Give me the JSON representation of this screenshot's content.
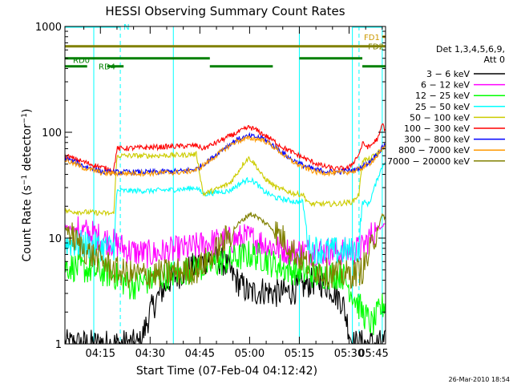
{
  "chart_data": {
    "type": "line",
    "title": "HESSI Observing Summary Count Rates",
    "xlabel": "Start Time (07-Feb-04 04:12:42)",
    "ylabel_main": "Count Rate (s",
    "ylabel_sup1": "−1",
    "ylabel_mid": " detector",
    "ylabel_sup2": "−1",
    "ylabel_end": ")",
    "y_scale": "log",
    "ylim": [
      1,
      1000
    ],
    "y_ticks": [
      {
        "value": 1,
        "label": "1"
      },
      {
        "value": 10,
        "label": "10"
      },
      {
        "value": 100,
        "label": "100"
      },
      {
        "value": 1000,
        "label": "1000"
      }
    ],
    "xlim_minutes": [
      4.3,
      101.0
    ],
    "x_ticks": [
      {
        "minute": 15,
        "label": "04:15"
      },
      {
        "minute": 30,
        "label": "04:30"
      },
      {
        "minute": 45,
        "label": "04:45"
      },
      {
        "minute": 60,
        "label": "05:00"
      },
      {
        "minute": 75,
        "label": "05:15"
      },
      {
        "minute": 90,
        "label": "05:30"
      },
      {
        "minute": 105,
        "label": "05:45"
      }
    ],
    "legend_header": [
      "Det 1,3,4,5,6,9,",
      "Att 0"
    ],
    "legend_position": "right",
    "series": [
      {
        "name": "3 − 6 keV",
        "color": "#000000",
        "points": [
          [
            4.3,
            1
          ],
          [
            27,
            1
          ],
          [
            30,
            2
          ],
          [
            33,
            3
          ],
          [
            36,
            4
          ],
          [
            40,
            4.8
          ],
          [
            44,
            5.5
          ],
          [
            48,
            6.5
          ],
          [
            52,
            6
          ],
          [
            56,
            4
          ],
          [
            60,
            3
          ],
          [
            64,
            3.2
          ],
          [
            68,
            3
          ],
          [
            72,
            3.1
          ],
          [
            76,
            3.5
          ],
          [
            80,
            4
          ],
          [
            84,
            3.5
          ],
          [
            88,
            2.5
          ],
          [
            91,
            1
          ],
          [
            101,
            1
          ]
        ]
      },
      {
        "name": "6 − 12 keV",
        "color": "#ff00ff",
        "points": [
          [
            4.3,
            13
          ],
          [
            12,
            11
          ],
          [
            19,
            9
          ],
          [
            24,
            7.5
          ],
          [
            30,
            7
          ],
          [
            36,
            7.5
          ],
          [
            42,
            8
          ],
          [
            48,
            9
          ],
          [
            54,
            9.5
          ],
          [
            58,
            10
          ],
          [
            60,
            10
          ],
          [
            62,
            9.5
          ],
          [
            66,
            8.5
          ],
          [
            72,
            7.5
          ],
          [
            78,
            7.5
          ],
          [
            86,
            7.5
          ],
          [
            91,
            7.5
          ],
          [
            94,
            8
          ],
          [
            96,
            10
          ],
          [
            98,
            12
          ],
          [
            101,
            14
          ]
        ]
      },
      {
        "name": "12 − 25 keV",
        "color": "#00ff00",
        "points": [
          [
            4.3,
            5.5
          ],
          [
            19,
            4.5
          ],
          [
            24,
            3.5
          ],
          [
            30,
            4
          ],
          [
            36,
            4.5
          ],
          [
            42,
            5
          ],
          [
            48,
            5.5
          ],
          [
            52,
            6
          ],
          [
            56,
            6.5
          ],
          [
            60,
            7
          ],
          [
            64,
            6.5
          ],
          [
            68,
            5.5
          ],
          [
            72,
            5
          ],
          [
            80,
            4.5
          ],
          [
            88,
            4.5
          ],
          [
            91,
            3
          ],
          [
            94,
            2
          ],
          [
            97,
            1.5
          ],
          [
            99,
            2
          ],
          [
            101,
            2.5
          ]
        ]
      },
      {
        "name": "25 − 50 keV",
        "color": "#00ffff",
        "points": [
          [
            4.3,
            9
          ],
          [
            12,
            8.5
          ],
          [
            19,
            8
          ],
          [
            20,
            28
          ],
          [
            30,
            28
          ],
          [
            40,
            29
          ],
          [
            44,
            30
          ],
          [
            46,
            26
          ],
          [
            50,
            27
          ],
          [
            54,
            28
          ],
          [
            56,
            31
          ],
          [
            58,
            34
          ],
          [
            60,
            36
          ],
          [
            62,
            33
          ],
          [
            64,
            28
          ],
          [
            68,
            24
          ],
          [
            74,
            22
          ],
          [
            76,
            22
          ],
          [
            78,
            8
          ],
          [
            86,
            7.5
          ],
          [
            91,
            7.5
          ],
          [
            93,
            8
          ],
          [
            94,
            22
          ],
          [
            96,
            21
          ],
          [
            99,
            40
          ],
          [
            101,
            55
          ]
        ]
      },
      {
        "name": "50 − 100 keV",
        "color": "#cccc00",
        "points": [
          [
            4.3,
            18
          ],
          [
            19,
            17
          ],
          [
            20,
            60
          ],
          [
            30,
            60
          ],
          [
            40,
            61
          ],
          [
            44,
            62
          ],
          [
            46,
            26
          ],
          [
            50,
            29
          ],
          [
            54,
            33
          ],
          [
            56,
            40
          ],
          [
            58,
            50
          ],
          [
            59,
            55
          ],
          [
            60,
            57
          ],
          [
            62,
            48
          ],
          [
            64,
            38
          ],
          [
            68,
            30
          ],
          [
            74,
            26
          ],
          [
            76,
            26
          ],
          [
            78,
            21
          ],
          [
            86,
            21
          ],
          [
            91,
            22
          ],
          [
            93,
            26
          ],
          [
            94,
            55
          ],
          [
            96,
            55
          ],
          [
            99,
            65
          ],
          [
            101,
            75
          ]
        ]
      },
      {
        "name": "100 − 300 keV",
        "color": "#ff0000",
        "points": [
          [
            4.3,
            60
          ],
          [
            8,
            55
          ],
          [
            12,
            50
          ],
          [
            16,
            46
          ],
          [
            19,
            44
          ],
          [
            20,
            70
          ],
          [
            30,
            72
          ],
          [
            40,
            74
          ],
          [
            44,
            75
          ],
          [
            46,
            70
          ],
          [
            50,
            80
          ],
          [
            54,
            92
          ],
          [
            58,
            105
          ],
          [
            60,
            112
          ],
          [
            62,
            105
          ],
          [
            66,
            88
          ],
          [
            70,
            72
          ],
          [
            74,
            62
          ],
          [
            78,
            54
          ],
          [
            82,
            48
          ],
          [
            86,
            45
          ],
          [
            90,
            46
          ],
          [
            93,
            62
          ],
          [
            94,
            78
          ],
          [
            96,
            72
          ],
          [
            99,
            90
          ],
          [
            100,
            120
          ],
          [
            101,
            105
          ]
        ]
      },
      {
        "name": "300 − 800 keV",
        "color": "#0000ff",
        "points": [
          [
            4.3,
            57
          ],
          [
            10,
            48
          ],
          [
            16,
            42
          ],
          [
            22,
            42
          ],
          [
            30,
            42
          ],
          [
            40,
            43
          ],
          [
            44,
            45
          ],
          [
            48,
            55
          ],
          [
            52,
            70
          ],
          [
            56,
            85
          ],
          [
            60,
            92
          ],
          [
            64,
            88
          ],
          [
            68,
            72
          ],
          [
            72,
            57
          ],
          [
            76,
            49
          ],
          [
            80,
            44
          ],
          [
            86,
            42
          ],
          [
            92,
            44
          ],
          [
            96,
            52
          ],
          [
            99,
            65
          ],
          [
            101,
            78
          ]
        ]
      },
      {
        "name": "800 − 7000 keV",
        "color": "#ff9900",
        "points": [
          [
            4.3,
            55
          ],
          [
            10,
            46
          ],
          [
            16,
            41
          ],
          [
            22,
            41
          ],
          [
            30,
            41
          ],
          [
            40,
            42
          ],
          [
            44,
            44
          ],
          [
            48,
            54
          ],
          [
            52,
            68
          ],
          [
            56,
            82
          ],
          [
            60,
            88
          ],
          [
            64,
            85
          ],
          [
            68,
            70
          ],
          [
            72,
            55
          ],
          [
            76,
            47
          ],
          [
            80,
            42
          ],
          [
            86,
            41
          ],
          [
            92,
            43
          ],
          [
            96,
            50
          ],
          [
            99,
            62
          ],
          [
            101,
            75
          ]
        ]
      },
      {
        "name": "7000 − 20000 keV",
        "color": "#808000",
        "points": [
          [
            4.3,
            13
          ],
          [
            8,
            9
          ],
          [
            12,
            7
          ],
          [
            16,
            6
          ],
          [
            19,
            5
          ],
          [
            24,
            4.5
          ],
          [
            30,
            4.5
          ],
          [
            38,
            4.8
          ],
          [
            44,
            5
          ],
          [
            48,
            6.5
          ],
          [
            52,
            9
          ],
          [
            56,
            13
          ],
          [
            60,
            17
          ],
          [
            62,
            16
          ],
          [
            66,
            13
          ],
          [
            70,
            10
          ],
          [
            74,
            7
          ],
          [
            78,
            5.5
          ],
          [
            82,
            4.8
          ],
          [
            86,
            4.6
          ],
          [
            90,
            4.5
          ],
          [
            94,
            5
          ],
          [
            96,
            7
          ],
          [
            98,
            11
          ],
          [
            100,
            16
          ],
          [
            101,
            16
          ]
        ]
      }
    ],
    "flags": [
      {
        "label": "N",
        "color": "#00ffff",
        "y": 1000,
        "segments": [
          [
            4.3,
            21
          ],
          [
            91,
            100
          ]
        ],
        "dashed": false
      },
      {
        "label": "FD1",
        "color": "#cc9900",
        "y": 800,
        "segments": [
          [
            100,
            101
          ]
        ],
        "dashed": false
      },
      {
        "label": "FD2",
        "color": "#808000",
        "y": 650,
        "segments": [
          [
            4.3,
            101
          ]
        ],
        "dashed": false
      },
      {
        "label": "RD0",
        "color": "#008000",
        "y": 500,
        "segments": [
          [
            4.3,
            48
          ],
          [
            75,
            94
          ]
        ],
        "dashed": false
      },
      {
        "label": "RD4",
        "color": "#008000",
        "y": 420,
        "segments": [
          [
            4.3,
            11
          ],
          [
            17,
            22
          ],
          [
            48,
            67
          ],
          [
            94,
            101
          ]
        ],
        "dashed": false
      }
    ],
    "vlines": [
      {
        "minute": 4.3,
        "color": "#00ffff",
        "dashed": false
      },
      {
        "minute": 13,
        "color": "#00ffff",
        "dashed": false
      },
      {
        "minute": 21,
        "color": "#00ffff",
        "dashed": true
      },
      {
        "minute": 37,
        "color": "#00ffff",
        "dashed": false
      },
      {
        "minute": 75,
        "color": "#00ffff",
        "dashed": false
      },
      {
        "minute": 91,
        "color": "#00ffff",
        "dashed": false
      },
      {
        "minute": 93,
        "color": "#00ffff",
        "dashed": true
      },
      {
        "minute": 100,
        "color": "#00ffff",
        "dashed": false
      }
    ]
  },
  "footer": {
    "timestamp": "26-Mar-2010 18:54"
  }
}
